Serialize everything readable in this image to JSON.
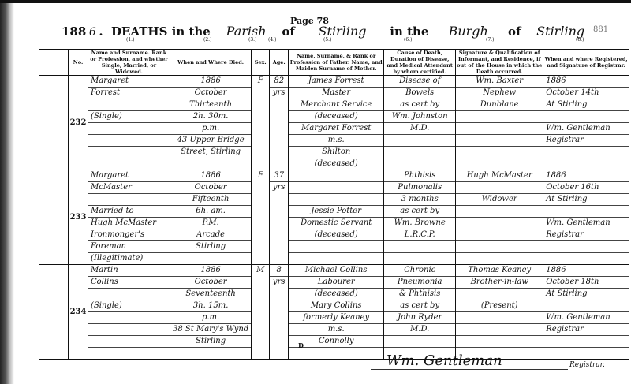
{
  "header": {
    "year_prefix": "188",
    "year_suffix": "6",
    "deaths_in_the": "DEATHS in the",
    "district_type": "Parish",
    "of_1": "of",
    "district_name": "Stirling",
    "in_the": "in the",
    "area_type": "Burgh",
    "of_2": "of",
    "area_name": "Stirling",
    "page": "Page 78",
    "ref": "881"
  },
  "column_numbers": [
    "(1.)",
    "(2.)",
    "(3.)",
    "(4.)",
    "(5.)",
    "(6.)",
    "(7.)",
    "(8.)"
  ],
  "columns": [
    "No.",
    "Name and Surname. Rank or Profession, and whether Single, Married, or Widowed.",
    "When and Where Died.",
    "Sex.",
    "Age.",
    "Name, Surname, & Rank or Profession of Father. Name, and Maiden Surname of Mother.",
    "Cause of Death, Duration of Disease, and Medical Attendant by whom certified.",
    "Signature & Qualification of Informant, and Residence, if out of the House in which the Death occurred.",
    "When and where Registered, and Signature of Registrar."
  ],
  "entries": [
    {
      "no": "232",
      "name": [
        "Margaret",
        "Forrest",
        "",
        "(Single)",
        "",
        "",
        "",
        ""
      ],
      "when_where": [
        "1886",
        "October",
        "Thirteenth",
        "2h. 30m.",
        "p.m.",
        "43 Upper Bridge",
        "Street, Stirling",
        ""
      ],
      "sex": "F",
      "age": [
        "82",
        "yrs"
      ],
      "parents": [
        "James Forrest",
        "Master",
        "Merchant Service",
        "(deceased)",
        "Margaret Forrest",
        "m.s.",
        "Shilton",
        "(deceased)"
      ],
      "cause": [
        "Disease of",
        "Bowels",
        "as cert by",
        "Wm. Johnston",
        "M.D.",
        "",
        "",
        ""
      ],
      "informant": [
        "Wm. Baxter",
        "Nephew",
        "Dunblane",
        "",
        "",
        "",
        "",
        ""
      ],
      "registered": [
        "1886",
        "October 14th",
        "At Stirling",
        "",
        "Wm. Gentleman",
        "Registrar",
        "",
        ""
      ]
    },
    {
      "no": "233",
      "name": [
        "Margaret",
        "McMaster",
        "",
        "Married to",
        "Hugh McMaster",
        "Ironmonger's",
        "Foreman",
        "(Illegitimate)"
      ],
      "when_where": [
        "1886",
        "October",
        "Fifteenth",
        "6h. am.",
        "P.M.",
        "Arcade",
        "Stirling",
        ""
      ],
      "sex": "F",
      "age": [
        "37",
        "yrs"
      ],
      "parents": [
        "",
        "",
        "",
        "Jessie Potter",
        "Domestic Servant",
        "(deceased)",
        "",
        ""
      ],
      "cause": [
        "Phthisis",
        "Pulmonalis",
        "3 months",
        "as cert by",
        "Wm. Browne",
        "L.R.C.P.",
        "",
        ""
      ],
      "informant": [
        "Hugh McMaster",
        "",
        "Widower",
        "",
        "",
        "",
        "",
        ""
      ],
      "registered": [
        "1886",
        "October 16th",
        "At Stirling",
        "",
        "Wm. Gentleman",
        "Registrar",
        "",
        ""
      ]
    },
    {
      "no": "234",
      "name": [
        "Martin",
        "Collins",
        "",
        "(Single)",
        "",
        "",
        "",
        ""
      ],
      "when_where": [
        "1886",
        "October",
        "Seventeenth",
        "3h. 15m.",
        "p.m.",
        "38 St Mary's Wynd",
        "Stirling",
        ""
      ],
      "sex": "M",
      "age": [
        "8",
        "yrs"
      ],
      "parents": [
        "Michael Collins",
        "Labourer",
        "(deceased)",
        "Mary Collins",
        "formerly Keaney",
        "m.s.",
        "Connolly",
        ""
      ],
      "cause": [
        "Chronic",
        "Pneumonia",
        "& Phthisis",
        "as cert by",
        "John Ryder",
        "M.D.",
        "",
        ""
      ],
      "informant": [
        "Thomas Keaney",
        "Brother-in-law",
        "",
        "(Present)",
        "",
        "",
        "",
        ""
      ],
      "registered": [
        "1886",
        "October 18th",
        "At Stirling",
        "",
        "Wm. Gentleman",
        "Registrar",
        "",
        ""
      ]
    }
  ],
  "footer": {
    "letter": "D",
    "signature": "Wm. Gentleman",
    "registrar": "Registrar."
  }
}
